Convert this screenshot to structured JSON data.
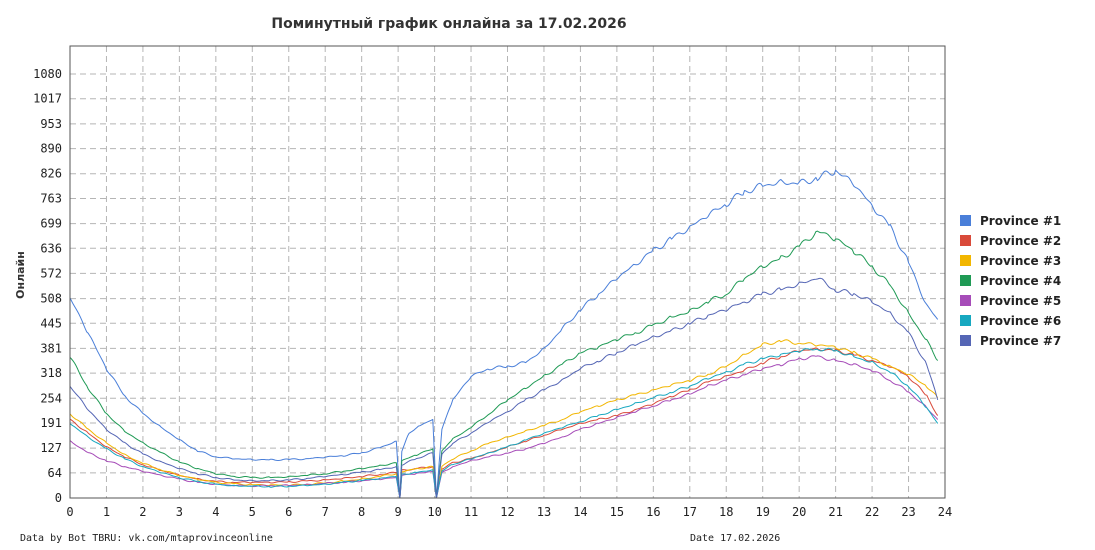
{
  "chart_data": {
    "type": "line",
    "title": "Поминутный график онлайна за 17.02.2026",
    "ylabel": "Онлайн",
    "xlabel": "",
    "x_ticks": [
      "0",
      "1",
      "2",
      "3",
      "4",
      "5",
      "6",
      "7",
      "8",
      "9",
      "10",
      "11",
      "12",
      "13",
      "14",
      "15",
      "16",
      "17",
      "18",
      "19",
      "20",
      "21",
      "22",
      "23",
      "24"
    ],
    "y_ticks": [
      "0",
      "64",
      "127",
      "191",
      "254",
      "318",
      "381",
      "445",
      "508",
      "572",
      "636",
      "699",
      "763",
      "826",
      "890",
      "953",
      "1017",
      "1080"
    ],
    "xlim": [
      0,
      24
    ],
    "ylim": [
      0,
      1080
    ],
    "grid": true,
    "legend_position": "right",
    "series": [
      {
        "name": "Province #1",
        "color": "#4a7fd9",
        "x": [
          0,
          0.5,
          1,
          1.5,
          2,
          2.5,
          3,
          3.5,
          4,
          4.5,
          5,
          5.5,
          6,
          6.5,
          7,
          7.5,
          8,
          8.5,
          8.95,
          9.05,
          9.1,
          9.3,
          9.6,
          9.95,
          10.05,
          10.2,
          10.5,
          11,
          11.5,
          12,
          12.5,
          13,
          13.5,
          14,
          14.5,
          15,
          15.5,
          16,
          16.5,
          17,
          17.5,
          18,
          18.5,
          19,
          19.5,
          20,
          20.5,
          21,
          21.5,
          22,
          22.5,
          23,
          23.5,
          23.8
        ],
        "y": [
          510,
          420,
          330,
          260,
          215,
          180,
          148,
          120,
          105,
          100,
          98,
          97,
          98,
          100,
          104,
          108,
          115,
          128,
          145,
          0,
          120,
          165,
          185,
          200,
          0,
          175,
          250,
          310,
          330,
          335,
          345,
          380,
          430,
          480,
          520,
          560,
          595,
          630,
          660,
          690,
          720,
          750,
          780,
          795,
          805,
          800,
          815,
          835,
          800,
          745,
          690,
          600,
          490,
          455
        ]
      },
      {
        "name": "Province #2",
        "color": "#d94a3a",
        "x": [
          0,
          0.5,
          1,
          1.5,
          2,
          2.5,
          3,
          3.5,
          4,
          4.5,
          5,
          5.5,
          6,
          6.5,
          7,
          7.5,
          8,
          8.5,
          8.95,
          9.05,
          9.1,
          9.5,
          9.95,
          10.05,
          10.2,
          10.5,
          11,
          11.5,
          12,
          12.5,
          13,
          13.5,
          14,
          14.5,
          15,
          15.5,
          16,
          16.5,
          17,
          17.5,
          18,
          18.5,
          19,
          19.5,
          20,
          20.5,
          21,
          21.5,
          22,
          22.5,
          23,
          23.5,
          23.8
        ],
        "y": [
          200,
          165,
          130,
          105,
          85,
          70,
          58,
          48,
          42,
          40,
          40,
          40,
          41,
          43,
          46,
          50,
          55,
          60,
          65,
          0,
          70,
          75,
          80,
          0,
          75,
          90,
          100,
          115,
          130,
          145,
          160,
          175,
          190,
          200,
          210,
          225,
          240,
          260,
          275,
          295,
          310,
          325,
          345,
          360,
          375,
          380,
          375,
          365,
          350,
          335,
          310,
          260,
          210
        ]
      },
      {
        "name": "Province #3",
        "color": "#f2b600",
        "x": [
          0,
          0.5,
          1,
          1.5,
          2,
          2.5,
          3,
          3.5,
          4,
          4.5,
          5,
          5.5,
          6,
          6.5,
          7,
          7.5,
          8,
          8.5,
          8.95,
          9.05,
          9.1,
          9.5,
          9.95,
          10.05,
          10.2,
          10.5,
          11,
          11.5,
          12,
          12.5,
          13,
          13.5,
          14,
          14.5,
          15,
          15.5,
          16,
          16.5,
          17,
          17.5,
          18,
          18.5,
          19,
          19.5,
          20,
          20.5,
          21,
          21.5,
          22,
          22.5,
          23,
          23.5,
          23.8
        ],
        "y": [
          215,
          175,
          140,
          110,
          88,
          72,
          58,
          48,
          40,
          36,
          34,
          33,
          33,
          35,
          38,
          43,
          48,
          55,
          62,
          0,
          68,
          74,
          80,
          0,
          80,
          100,
          120,
          140,
          155,
          170,
          185,
          200,
          220,
          235,
          250,
          262,
          275,
          288,
          300,
          315,
          335,
          365,
          390,
          400,
          395,
          390,
          385,
          370,
          355,
          335,
          315,
          285,
          255
        ]
      },
      {
        "name": "Province #4",
        "color": "#1f9a55",
        "x": [
          0,
          0.5,
          1,
          1.5,
          2,
          2.5,
          3,
          3.5,
          4,
          4.5,
          5,
          5.5,
          6,
          6.5,
          7,
          7.5,
          8,
          8.5,
          8.95,
          9.05,
          9.1,
          9.5,
          9.95,
          10.05,
          10.2,
          10.5,
          11,
          11.5,
          12,
          12.5,
          13,
          13.5,
          14,
          14.5,
          15,
          15.5,
          16,
          16.5,
          17,
          17.5,
          18,
          18.5,
          19,
          19.5,
          20,
          20.5,
          21,
          21.5,
          22,
          22.5,
          23,
          23.5,
          23.8
        ],
        "y": [
          360,
          280,
          215,
          170,
          140,
          115,
          92,
          75,
          62,
          55,
          52,
          52,
          54,
          58,
          62,
          68,
          75,
          82,
          90,
          0,
          95,
          110,
          125,
          0,
          120,
          150,
          180,
          215,
          250,
          280,
          310,
          340,
          370,
          385,
          405,
          420,
          440,
          460,
          475,
          500,
          520,
          560,
          590,
          610,
          640,
          680,
          660,
          630,
          590,
          540,
          470,
          400,
          350
        ]
      },
      {
        "name": "Province #5",
        "color": "#a64cb8",
        "x": [
          0,
          0.5,
          1,
          1.5,
          2,
          2.5,
          3,
          3.5,
          4,
          4.5,
          5,
          5.5,
          6,
          6.5,
          7,
          7.5,
          8,
          8.5,
          8.95,
          9.05,
          9.1,
          9.5,
          9.95,
          10.05,
          10.2,
          10.5,
          11,
          11.5,
          12,
          12.5,
          13,
          13.5,
          14,
          14.5,
          15,
          15.5,
          16,
          16.5,
          17,
          17.5,
          18,
          18.5,
          19,
          19.5,
          20,
          20.5,
          21,
          21.5,
          22,
          22.5,
          23,
          23.5,
          23.8
        ],
        "y": [
          145,
          115,
          95,
          80,
          68,
          58,
          48,
          40,
          35,
          32,
          31,
          31,
          32,
          34,
          37,
          40,
          44,
          48,
          52,
          0,
          58,
          62,
          68,
          0,
          65,
          80,
          95,
          105,
          115,
          125,
          140,
          155,
          175,
          190,
          205,
          220,
          235,
          250,
          265,
          285,
          300,
          315,
          330,
          340,
          355,
          360,
          350,
          340,
          325,
          300,
          270,
          230,
          200
        ]
      },
      {
        "name": "Province #6",
        "color": "#17a8c0",
        "x": [
          0,
          0.5,
          1,
          1.5,
          2,
          2.5,
          3,
          3.5,
          4,
          4.5,
          5,
          5.5,
          6,
          6.5,
          7,
          7.5,
          8,
          8.5,
          8.95,
          9.05,
          9.1,
          9.5,
          9.95,
          10.05,
          10.2,
          10.5,
          11,
          11.5,
          12,
          12.5,
          13,
          13.5,
          14,
          14.5,
          15,
          15.5,
          16,
          16.5,
          17,
          17.5,
          18,
          18.5,
          19,
          19.5,
          20,
          20.5,
          21,
          21.5,
          22,
          22.5,
          23,
          23.5,
          23.8
        ],
        "y": [
          190,
          155,
          125,
          100,
          80,
          65,
          52,
          42,
          35,
          31,
          30,
          29,
          30,
          32,
          35,
          40,
          45,
          50,
          55,
          0,
          60,
          65,
          72,
          0,
          70,
          85,
          100,
          115,
          130,
          148,
          165,
          180,
          195,
          210,
          225,
          240,
          255,
          270,
          285,
          305,
          320,
          340,
          355,
          365,
          375,
          380,
          375,
          360,
          345,
          320,
          285,
          230,
          190
        ]
      },
      {
        "name": "Province #7",
        "color": "#5566b5",
        "x": [
          0,
          0.5,
          1,
          1.5,
          2,
          2.5,
          3,
          3.5,
          4,
          4.5,
          5,
          5.5,
          6,
          6.5,
          7,
          7.5,
          8,
          8.5,
          8.95,
          9.05,
          9.1,
          9.5,
          9.95,
          10.05,
          10.2,
          10.5,
          11,
          11.5,
          12,
          12.5,
          13,
          13.5,
          14,
          14.5,
          15,
          15.5,
          16,
          16.5,
          17,
          17.5,
          18,
          18.5,
          19,
          19.5,
          20,
          20.5,
          21,
          21.5,
          22,
          22.5,
          23,
          23.5,
          23.8
        ],
        "y": [
          285,
          225,
          175,
          140,
          112,
          92,
          75,
          62,
          52,
          46,
          44,
          44,
          46,
          50,
          55,
          60,
          66,
          72,
          80,
          0,
          85,
          100,
          115,
          0,
          110,
          140,
          165,
          195,
          220,
          250,
          275,
          300,
          330,
          350,
          370,
          390,
          410,
          425,
          445,
          465,
          480,
          500,
          520,
          530,
          545,
          560,
          530,
          520,
          500,
          470,
          420,
          340,
          250
        ]
      }
    ]
  },
  "footer": {
    "source": "Data by Bot TBRU: vk.com/mtaprovinceonline",
    "date": "Date 17.02.2026"
  }
}
